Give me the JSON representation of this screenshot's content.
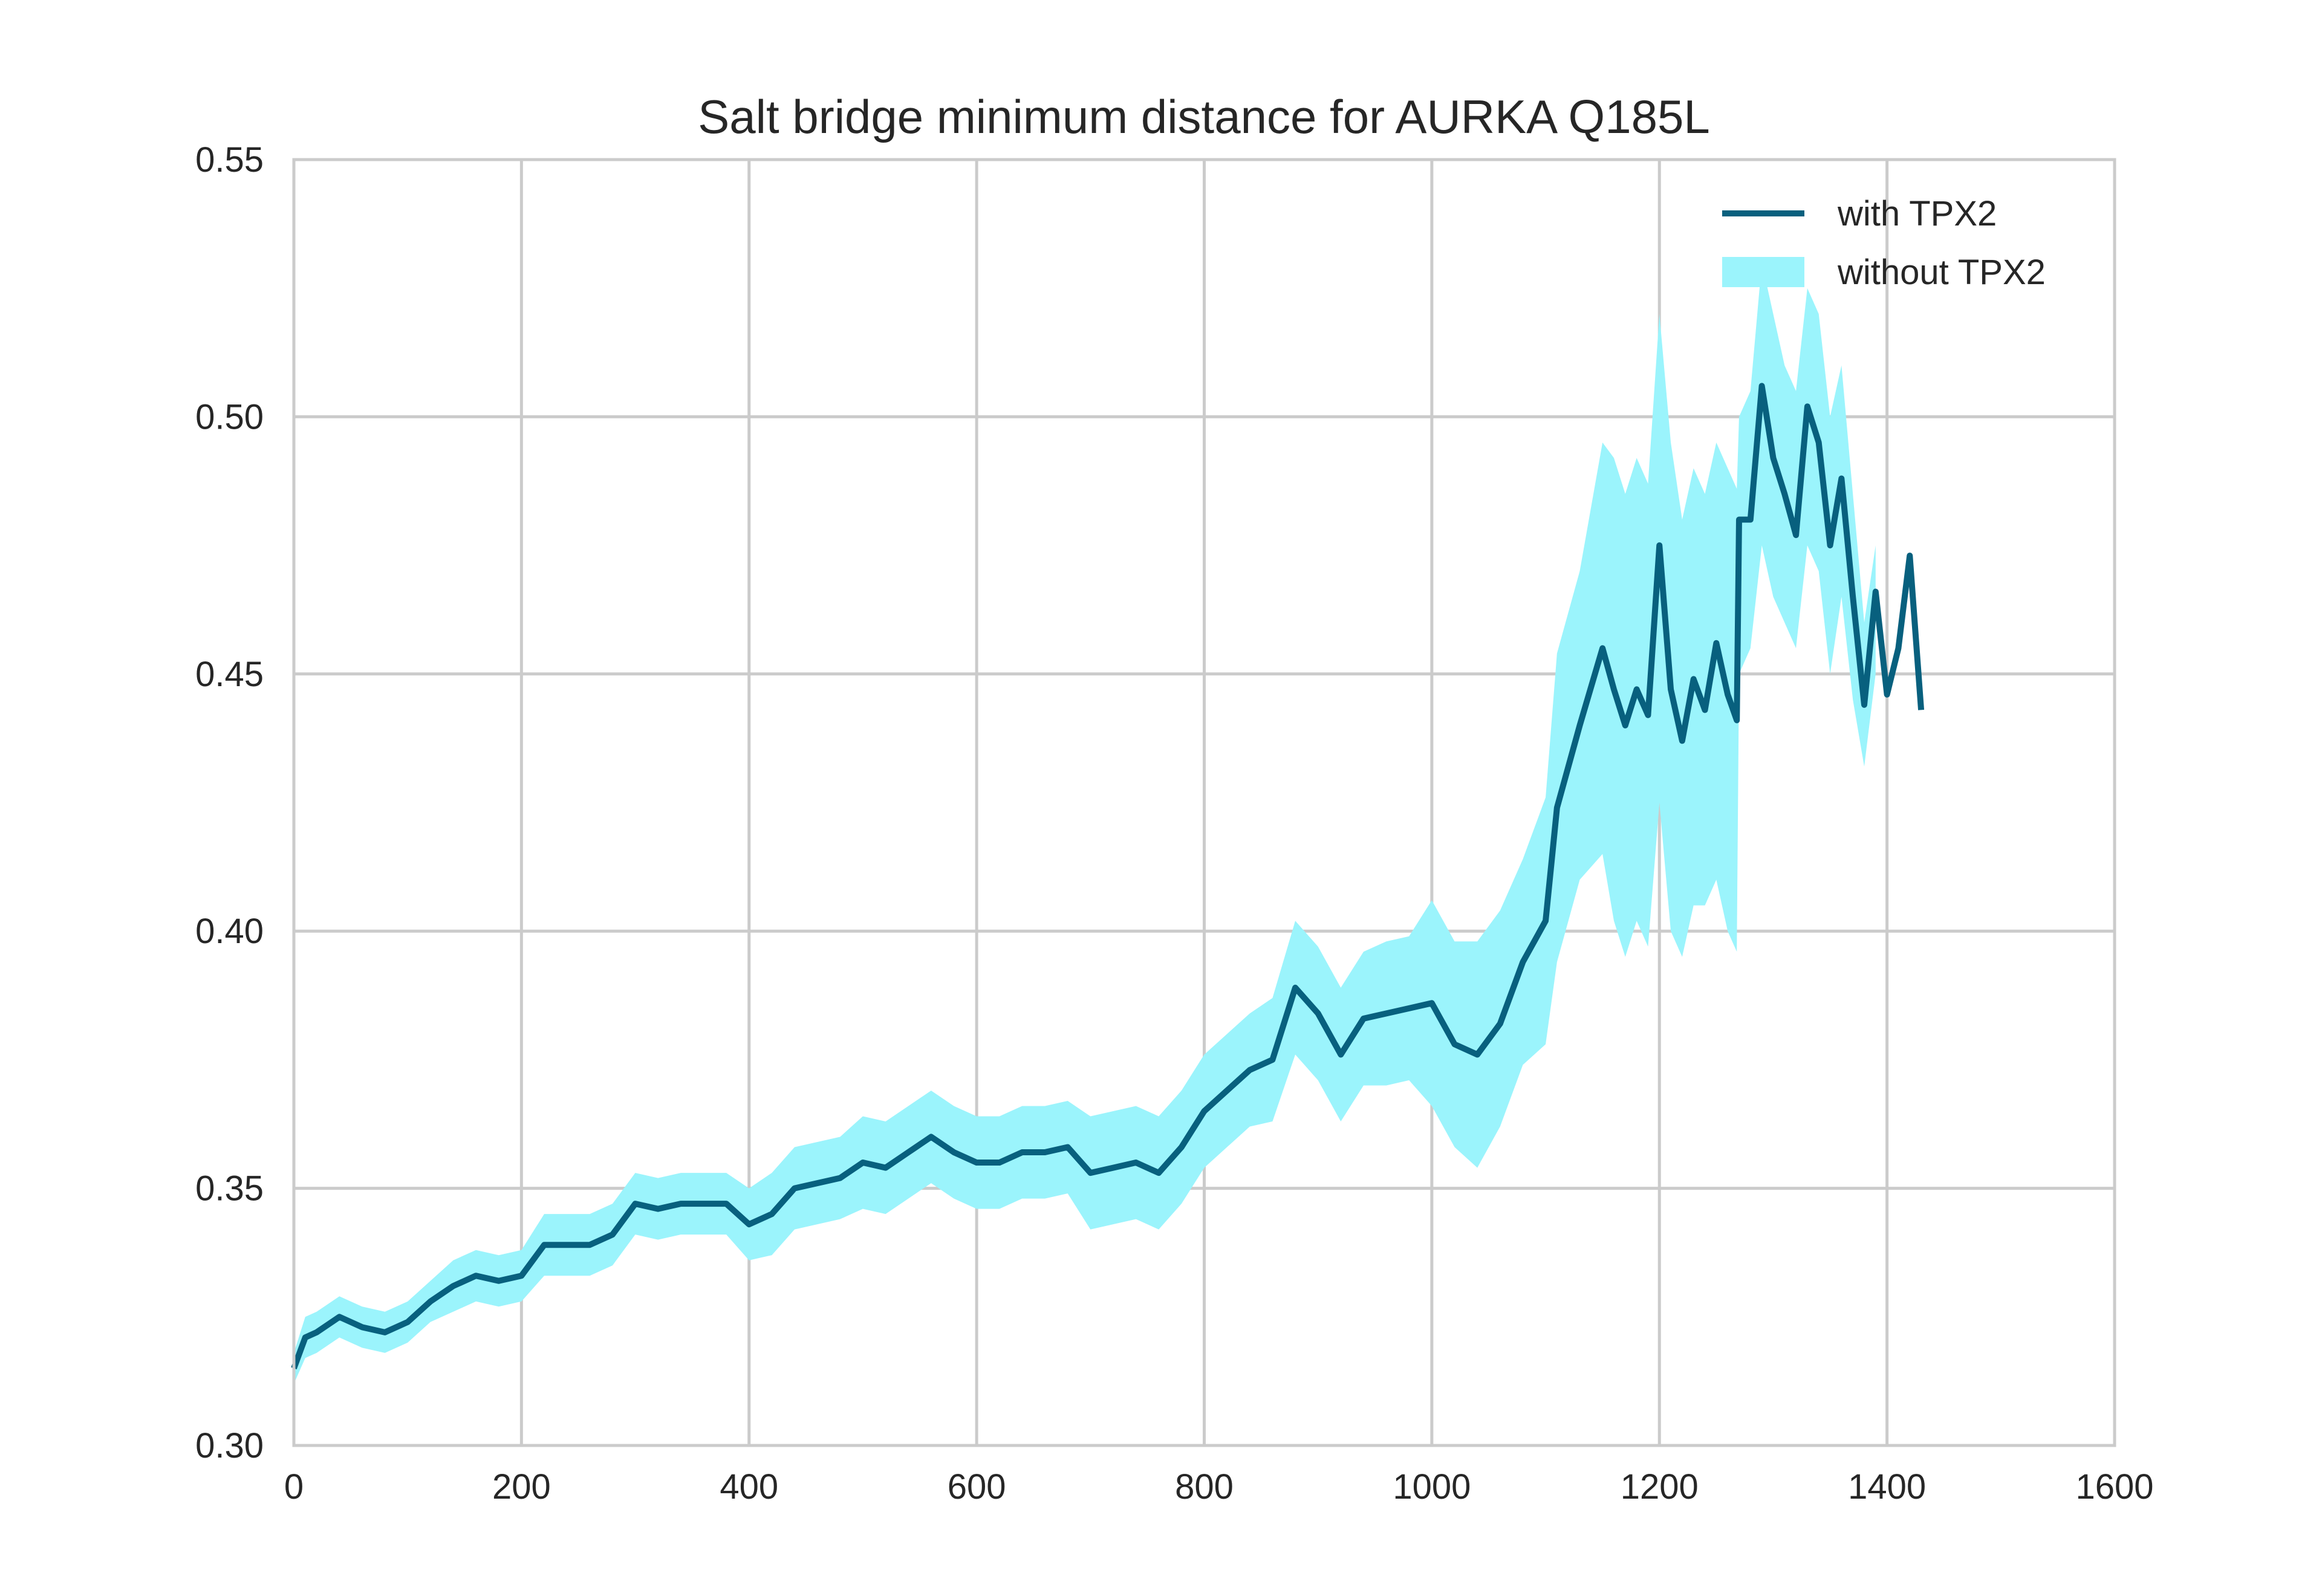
{
  "chart_data": {
    "type": "line",
    "title": "Salt bridge minimum distance for AURKA Q185L",
    "x": [
      0,
      10,
      20,
      40,
      60,
      80,
      100,
      120,
      140,
      160,
      180,
      200,
      220,
      240,
      260,
      280,
      300,
      320,
      340,
      360,
      380,
      400,
      420,
      440,
      460,
      480,
      500,
      520,
      540,
      560,
      580,
      600,
      620,
      640,
      660,
      680,
      700,
      720,
      740,
      760,
      780,
      800,
      820,
      840,
      860,
      880,
      900,
      920,
      940,
      960,
      980,
      1000,
      1020,
      1040,
      1060,
      1080,
      1100,
      1110,
      1130,
      1150,
      1160,
      1170,
      1180,
      1190,
      1200,
      1210,
      1220,
      1230,
      1240,
      1250,
      1260,
      1268,
      1270,
      1280,
      1290,
      1300,
      1310,
      1320,
      1330,
      1340,
      1350,
      1360,
      1370,
      1380,
      1390,
      1400,
      1410,
      1420,
      1430
    ],
    "series": [
      {
        "name": "with TPX2",
        "color": "#08607e",
        "values": [
          0.315,
          0.321,
          0.322,
          0.325,
          0.323,
          0.322,
          0.324,
          0.328,
          0.331,
          0.333,
          0.332,
          0.333,
          0.339,
          0.339,
          0.339,
          0.341,
          0.347,
          0.346,
          0.347,
          0.347,
          0.347,
          0.343,
          0.345,
          0.35,
          0.351,
          0.352,
          0.355,
          0.354,
          0.357,
          0.36,
          0.357,
          0.355,
          0.355,
          0.357,
          0.357,
          0.358,
          0.353,
          0.354,
          0.355,
          0.353,
          0.358,
          0.365,
          0.369,
          0.373,
          0.375,
          0.389,
          0.384,
          0.376,
          0.383,
          0.384,
          0.385,
          0.386,
          0.378,
          0.376,
          0.382,
          0.394,
          0.402,
          0.424,
          0.44,
          0.455,
          0.447,
          0.44,
          0.447,
          0.442,
          0.475,
          0.447,
          0.437,
          0.449,
          0.443,
          0.456,
          0.446,
          0.441,
          0.48,
          0.48,
          0.506,
          0.492,
          0.485,
          0.477,
          0.502,
          0.495,
          0.475,
          0.488,
          0.465,
          0.444,
          0.466,
          0.446,
          0.455,
          0.473,
          0.443
        ]
      },
      {
        "name": "without TPX2",
        "color": "#9bf4fc",
        "lower": [
          0.312,
          0.317,
          0.318,
          0.321,
          0.319,
          0.318,
          0.32,
          0.324,
          0.326,
          0.328,
          0.327,
          0.328,
          0.333,
          0.333,
          0.333,
          0.335,
          0.341,
          0.34,
          0.341,
          0.341,
          0.341,
          0.336,
          0.337,
          0.342,
          0.343,
          0.344,
          0.346,
          0.345,
          0.348,
          0.351,
          0.348,
          0.346,
          0.346,
          0.348,
          0.348,
          0.349,
          0.342,
          0.343,
          0.344,
          0.342,
          0.347,
          0.354,
          0.358,
          0.362,
          0.363,
          0.376,
          0.371,
          0.363,
          0.37,
          0.37,
          0.371,
          0.366,
          0.358,
          0.354,
          0.362,
          0.374,
          0.378,
          0.394,
          0.41,
          0.415,
          0.402,
          0.395,
          0.402,
          0.397,
          0.425,
          0.4,
          0.395,
          0.405,
          0.405,
          0.41,
          0.4,
          0.396,
          0.45,
          0.455,
          0.475,
          0.465,
          0.46,
          0.455,
          0.475,
          0.47,
          0.45,
          0.465,
          0.445,
          0.432,
          0.45,
          null,
          null,
          null,
          null
        ],
        "upper": [
          0.318,
          0.325,
          0.326,
          0.329,
          0.327,
          0.326,
          0.328,
          0.332,
          0.336,
          0.338,
          0.337,
          0.338,
          0.345,
          0.345,
          0.345,
          0.347,
          0.353,
          0.352,
          0.353,
          0.353,
          0.353,
          0.35,
          0.353,
          0.358,
          0.359,
          0.36,
          0.364,
          0.363,
          0.366,
          0.369,
          0.366,
          0.364,
          0.364,
          0.366,
          0.366,
          0.367,
          0.364,
          0.365,
          0.366,
          0.364,
          0.369,
          0.376,
          0.38,
          0.384,
          0.387,
          0.402,
          0.397,
          0.389,
          0.396,
          0.398,
          0.399,
          0.406,
          0.398,
          0.398,
          0.404,
          0.414,
          0.426,
          0.454,
          0.47,
          0.495,
          0.492,
          0.485,
          0.492,
          0.487,
          0.52,
          0.495,
          0.48,
          0.49,
          0.485,
          0.495,
          0.49,
          0.486,
          0.5,
          0.505,
          0.53,
          0.52,
          0.51,
          0.505,
          0.525,
          0.52,
          0.5,
          0.51,
          0.485,
          0.46,
          0.475,
          null,
          null,
          null,
          null
        ]
      }
    ],
    "xlim": [
      0,
      1600
    ],
    "xticks": [
      0,
      200,
      400,
      600,
      800,
      1000,
      1200,
      1400,
      1600
    ],
    "ylim": [
      0.3,
      0.55
    ],
    "yticks": [
      {
        "value": 0.3,
        "label": "0.30"
      },
      0.35,
      {
        "value": 0.4,
        "label": "0.40"
      },
      0.45,
      {
        "value": 0.5,
        "label": "0.50"
      },
      0.55
    ],
    "grid": true,
    "legend": "upper right"
  }
}
